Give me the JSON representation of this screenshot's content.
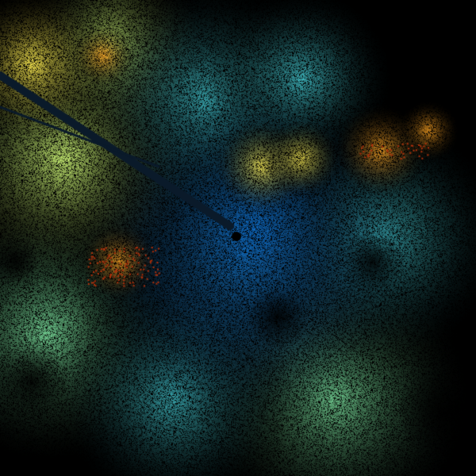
{
  "image": {
    "kind": "radar-sweep",
    "background_color": "#000000",
    "palette": {
      "deep_blue": "#0b5aa8",
      "blue": "#1a78c2",
      "teal": "#3aa9b0",
      "green": "#6cc48a",
      "yellow_green": "#b8dc6a",
      "yellow": "#e8d84a",
      "orange": "#e0901e",
      "red": "#b0300c",
      "beam_shadow": "#0a1a2a"
    }
  }
}
